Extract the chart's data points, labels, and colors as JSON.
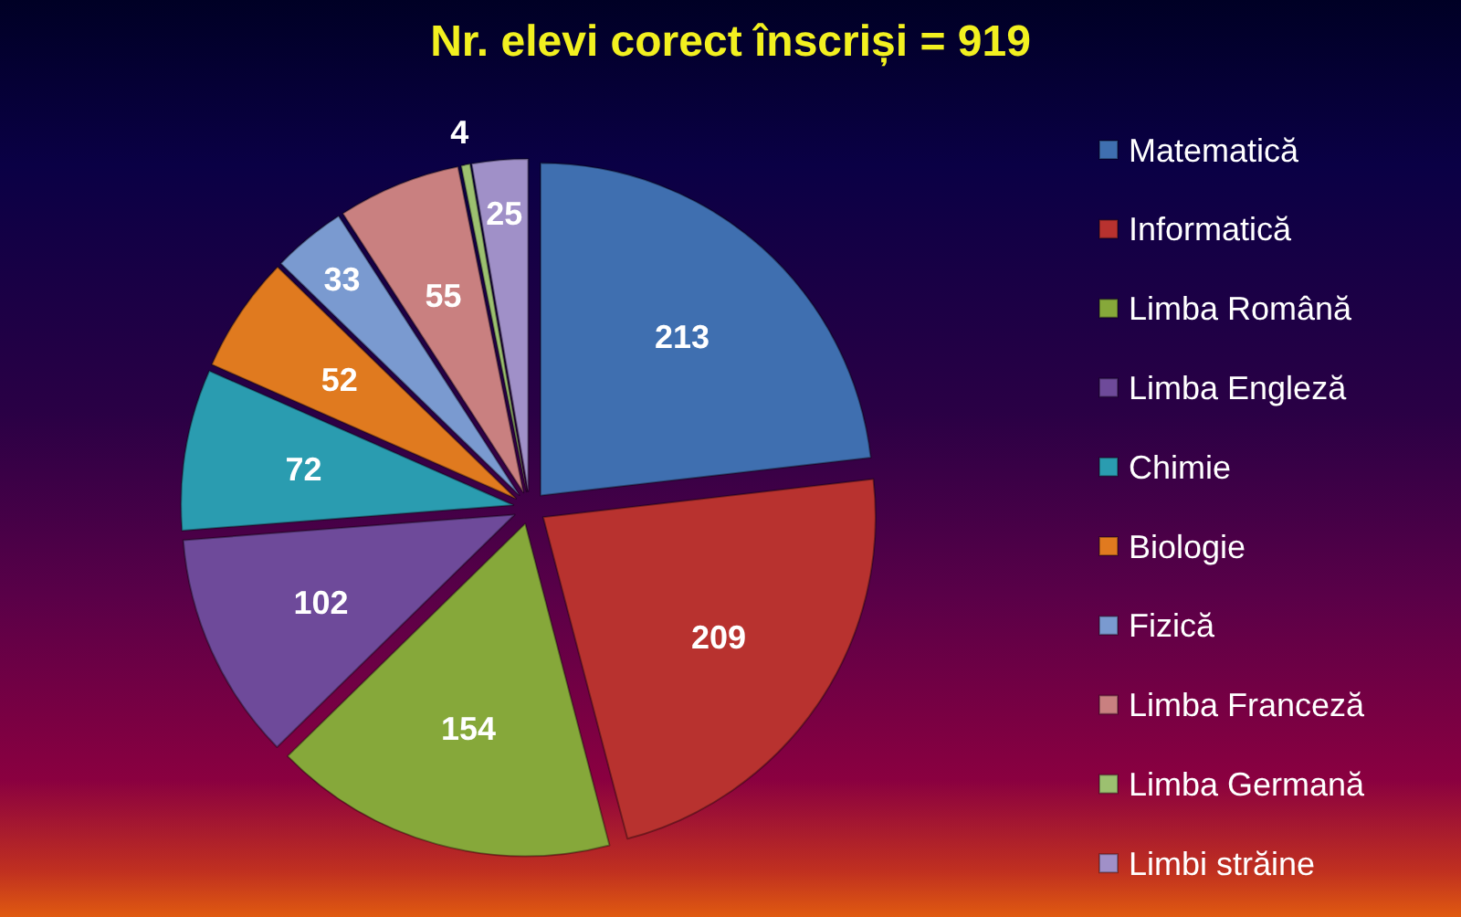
{
  "chart_data": {
    "type": "pie",
    "title": "Nr. elevi corect înscriși = 919",
    "categories": [
      "Matematică",
      "Informatică",
      "Limba Română",
      "Limba Engleză",
      "Chimie",
      "Biologie",
      "Fizică",
      "Limba Franceză",
      "Limba Germană",
      "Limbi străine"
    ],
    "values": [
      213,
      209,
      154,
      102,
      72,
      52,
      33,
      55,
      4,
      25
    ],
    "colors": [
      "#3f6fb0",
      "#b8322f",
      "#86a83a",
      "#6e4a9a",
      "#2a9cb0",
      "#e07a1f",
      "#7a9ad0",
      "#c98080",
      "#9cc070",
      "#a090c8"
    ],
    "data_labels": true,
    "legend": "right"
  }
}
